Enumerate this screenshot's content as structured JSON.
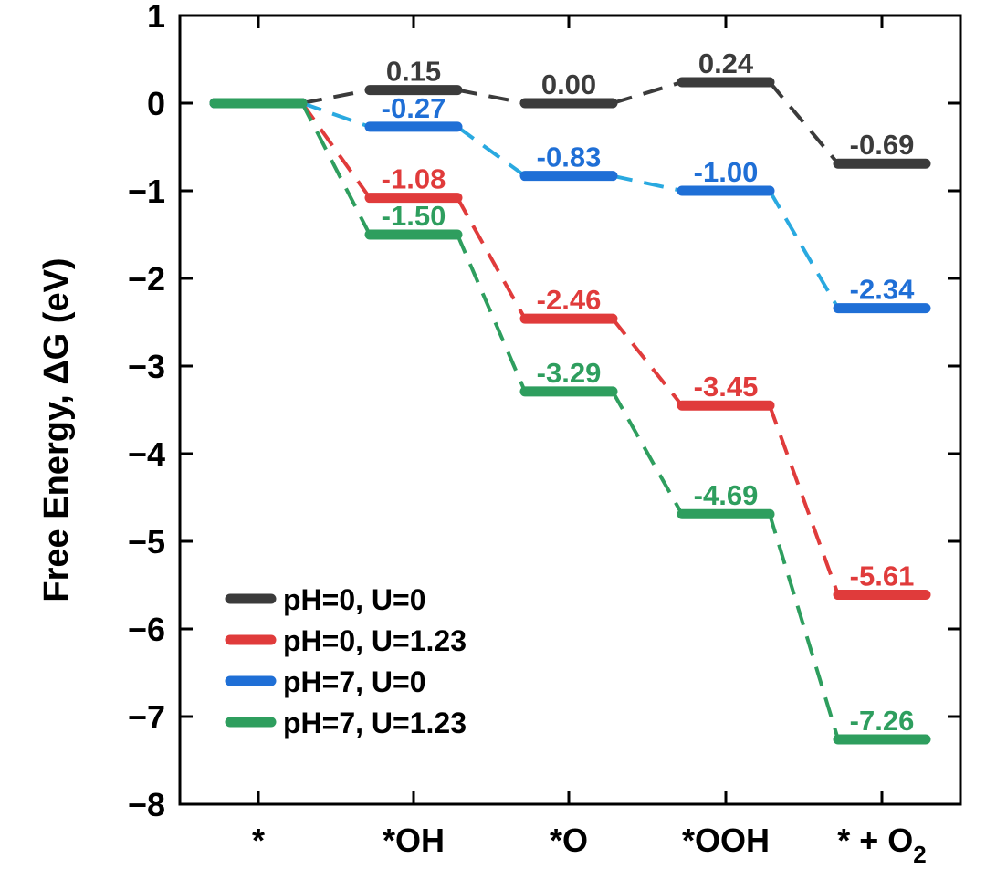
{
  "chart_data": {
    "type": "line",
    "title": "",
    "xlabel": "",
    "ylabel": "Free Energy, ΔG (eV)",
    "ylim": [
      -8,
      1
    ],
    "yticks": [
      1,
      0,
      -1,
      -2,
      -3,
      -4,
      -5,
      -6,
      -7,
      -8
    ],
    "categories": [
      "*",
      "*OH",
      "*O",
      "*OOH",
      "* + O2"
    ],
    "category_labels": [
      {
        "main": "*",
        "sub": ""
      },
      {
        "main": "*OH",
        "sub": ""
      },
      {
        "main": "*O",
        "sub": ""
      },
      {
        "main": "*OOH",
        "sub": ""
      },
      {
        "main": "* + O",
        "sub": "2"
      }
    ],
    "legend_position": "bottom-left",
    "series": [
      {
        "name": "pH=0, U=0",
        "color": "#3b3b3b",
        "values": [
          0,
          0.15,
          0.0,
          0.24,
          -0.69
        ],
        "labels": [
          "",
          "0.15",
          "0.00",
          "0.24",
          "-0.69"
        ]
      },
      {
        "name": "pH=0, U=1.23",
        "color": "#e03b3b",
        "values": [
          0,
          -1.08,
          -2.46,
          -3.45,
          -5.61
        ],
        "labels": [
          "",
          "-1.08",
          "-2.46",
          "-3.45",
          "-5.61"
        ]
      },
      {
        "name": "pH=7, U=0",
        "color": "#1f6fd6",
        "line_color": "#29a9e0",
        "values": [
          0,
          -0.27,
          -0.83,
          -1.0,
          -2.34
        ],
        "labels": [
          "",
          "-0.27",
          "-0.83",
          "-1.00",
          "-2.34"
        ]
      },
      {
        "name": "pH=7, U=1.23",
        "color": "#2e9e5e",
        "values": [
          0,
          -1.5,
          -3.29,
          -4.69,
          -7.26
        ],
        "labels": [
          "",
          "-1.50",
          "-3.29",
          "-4.69",
          "-7.26"
        ]
      }
    ]
  }
}
